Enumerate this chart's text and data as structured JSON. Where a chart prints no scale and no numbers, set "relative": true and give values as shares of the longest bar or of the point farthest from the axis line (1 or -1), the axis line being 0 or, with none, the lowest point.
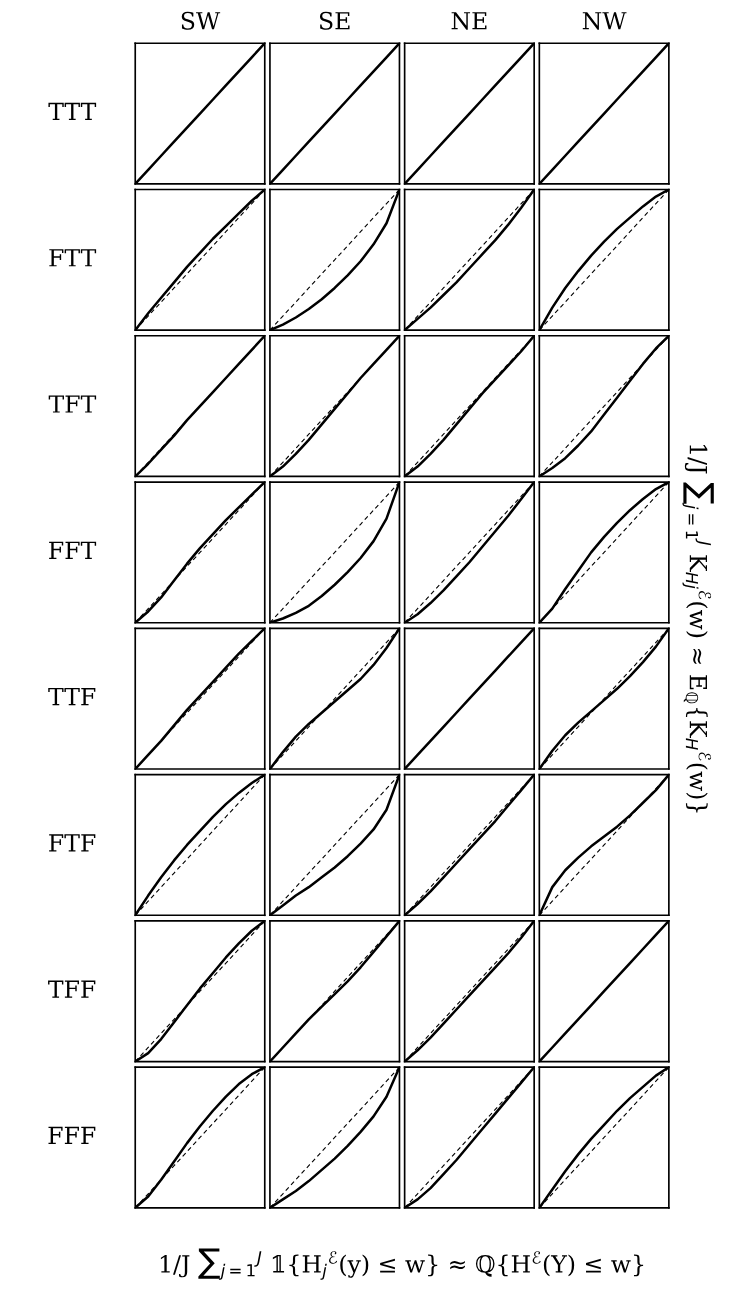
{
  "chart_data": [
    {
      "type": "line",
      "title": "SW",
      "ylabel": "TTT",
      "annotations": [
        "1/J ∑$_{j=1}$$^{J}$ 𝟙{H$_{j}$$^{ℰ}$(y) ≤ w} ≈ ℚ{H$^{ℰ}$(Y) ≤ w}",
        "1/J ∑$_{j=1}$$^{J}$ K$_{Hj}$$^{ℰ}$(w) ≈ E$_{ℚ}${K$_{H}$$^{ℰ}$(w)}"
      ],
      "relative": true,
      "categories": [
        null,
        null,
        null,
        null,
        null,
        null,
        null,
        null,
        null,
        null,
        null
      ],
      "series": [
        {
          "color": "#000000",
          "line_style": "solid",
          "values": [
            0,
            0.1,
            0.2,
            0.3,
            0.4,
            0.5,
            0.6,
            0.7,
            0.8,
            0.9,
            1
          ]
        }
      ]
    },
    {
      "type": "line",
      "title": "SE",
      "relative": true,
      "categories": [
        null,
        null,
        null,
        null,
        null,
        null,
        null,
        null,
        null,
        null,
        null
      ],
      "series": [
        {
          "color": "#000000",
          "line_style": "solid",
          "values": [
            0,
            0.1,
            0.2,
            0.3,
            0.4,
            0.5,
            0.6,
            0.7,
            0.8,
            0.9,
            1
          ]
        }
      ]
    },
    {
      "type": "line",
      "title": "NE",
      "relative": true,
      "categories": [
        null,
        null,
        null,
        null,
        null,
        null,
        null,
        null,
        null,
        null,
        null
      ],
      "series": [
        {
          "color": "#000000",
          "line_style": "solid",
          "values": [
            0,
            0.1,
            0.2,
            0.3,
            0.4,
            0.5,
            0.6,
            0.7,
            0.8,
            0.9,
            1
          ]
        }
      ]
    },
    {
      "type": "line",
      "title": "NW",
      "relative": true,
      "categories": [
        null,
        null,
        null,
        null,
        null,
        null,
        null,
        null,
        null,
        null,
        null
      ],
      "series": [
        {
          "color": "#000000",
          "line_style": "solid",
          "values": [
            0,
            0.1,
            0.2,
            0.3,
            0.4,
            0.5,
            0.6,
            0.7,
            0.8,
            0.9,
            1
          ]
        }
      ]
    },
    {
      "type": "line",
      "ylabel": "FTT",
      "relative": true,
      "categories": [
        null,
        null,
        null,
        null,
        null,
        null,
        null,
        null,
        null,
        null,
        null
      ],
      "series": [
        {
          "color": "#000000",
          "line_style": "solid",
          "values": [
            0,
            0.12,
            0.23,
            0.34,
            0.45,
            0.55,
            0.65,
            0.74,
            0.83,
            0.92,
            1
          ]
        },
        {
          "color": "#000000",
          "line_style": "dashed",
          "values": [
            0,
            0.1,
            0.2,
            0.3,
            0.4,
            0.5,
            0.6,
            0.7,
            0.8,
            0.9,
            1
          ]
        }
      ]
    },
    {
      "type": "line",
      "relative": true,
      "categories": [
        null,
        null,
        null,
        null,
        null,
        null,
        null,
        null,
        null,
        null,
        null
      ],
      "series": [
        {
          "color": "#000000",
          "line_style": "solid",
          "values": [
            0,
            0.04,
            0.09,
            0.15,
            0.22,
            0.3,
            0.39,
            0.49,
            0.61,
            0.76,
            1
          ]
        },
        {
          "color": "#000000",
          "line_style": "dashed",
          "values": [
            0,
            0.1,
            0.2,
            0.3,
            0.4,
            0.5,
            0.6,
            0.7,
            0.8,
            0.9,
            1
          ]
        }
      ]
    },
    {
      "type": "line",
      "relative": true,
      "categories": [
        null,
        null,
        null,
        null,
        null,
        null,
        null,
        null,
        null,
        null,
        null
      ],
      "series": [
        {
          "color": "#000000",
          "line_style": "solid",
          "values": [
            0,
            0.08,
            0.16,
            0.25,
            0.34,
            0.44,
            0.54,
            0.64,
            0.75,
            0.87,
            1
          ]
        },
        {
          "color": "#000000",
          "line_style": "dashed",
          "values": [
            0,
            0.1,
            0.2,
            0.3,
            0.4,
            0.5,
            0.6,
            0.7,
            0.8,
            0.9,
            1
          ]
        }
      ]
    },
    {
      "type": "line",
      "relative": true,
      "categories": [
        null,
        null,
        null,
        null,
        null,
        null,
        null,
        null,
        null,
        null,
        null
      ],
      "series": [
        {
          "color": "#000000",
          "line_style": "solid",
          "values": [
            0,
            0.16,
            0.3,
            0.42,
            0.53,
            0.63,
            0.72,
            0.8,
            0.88,
            0.95,
            1
          ]
        },
        {
          "color": "#000000",
          "line_style": "dashed",
          "values": [
            0,
            0.1,
            0.2,
            0.3,
            0.4,
            0.5,
            0.6,
            0.7,
            0.8,
            0.9,
            1
          ]
        }
      ]
    },
    {
      "type": "line",
      "ylabel": "TFT",
      "relative": true,
      "categories": [
        null,
        null,
        null,
        null,
        null,
        null,
        null,
        null,
        null,
        null,
        null
      ],
      "series": [
        {
          "color": "#000000",
          "line_style": "solid",
          "values": [
            0,
            0.09,
            0.19,
            0.29,
            0.4,
            0.5,
            0.6,
            0.7,
            0.8,
            0.9,
            1
          ]
        },
        {
          "color": "#000000",
          "line_style": "dashed",
          "values": [
            0,
            0.1,
            0.2,
            0.3,
            0.4,
            0.5,
            0.6,
            0.7,
            0.8,
            0.9,
            1
          ]
        }
      ]
    },
    {
      "type": "line",
      "relative": true,
      "categories": [
        null,
        null,
        null,
        null,
        null,
        null,
        null,
        null,
        null,
        null,
        null
      ],
      "series": [
        {
          "color": "#000000",
          "line_style": "solid",
          "values": [
            0,
            0.07,
            0.16,
            0.26,
            0.37,
            0.48,
            0.59,
            0.7,
            0.8,
            0.9,
            1
          ]
        },
        {
          "color": "#000000",
          "line_style": "dashed",
          "values": [
            0,
            0.1,
            0.2,
            0.3,
            0.4,
            0.5,
            0.6,
            0.7,
            0.8,
            0.9,
            1
          ]
        }
      ]
    },
    {
      "type": "line",
      "relative": true,
      "categories": [
        null,
        null,
        null,
        null,
        null,
        null,
        null,
        null,
        null,
        null,
        null
      ],
      "series": [
        {
          "color": "#000000",
          "line_style": "solid",
          "values": [
            0,
            0.07,
            0.16,
            0.26,
            0.37,
            0.48,
            0.59,
            0.69,
            0.79,
            0.89,
            1
          ]
        },
        {
          "color": "#000000",
          "line_style": "dashed",
          "values": [
            0,
            0.1,
            0.2,
            0.3,
            0.4,
            0.5,
            0.6,
            0.7,
            0.8,
            0.9,
            1
          ]
        }
      ]
    },
    {
      "type": "line",
      "relative": true,
      "categories": [
        null,
        null,
        null,
        null,
        null,
        null,
        null,
        null,
        null,
        null,
        null
      ],
      "series": [
        {
          "color": "#000000",
          "line_style": "solid",
          "values": [
            0,
            0.06,
            0.13,
            0.22,
            0.32,
            0.44,
            0.56,
            0.68,
            0.8,
            0.91,
            1
          ]
        },
        {
          "color": "#000000",
          "line_style": "dashed",
          "values": [
            0,
            0.1,
            0.2,
            0.3,
            0.4,
            0.5,
            0.6,
            0.7,
            0.8,
            0.9,
            1
          ]
        }
      ]
    },
    {
      "type": "line",
      "ylabel": "FFT",
      "relative": true,
      "categories": [
        null,
        null,
        null,
        null,
        null,
        null,
        null,
        null,
        null,
        null,
        null
      ],
      "series": [
        {
          "color": "#000000",
          "line_style": "solid",
          "values": [
            0,
            0.08,
            0.18,
            0.3,
            0.42,
            0.53,
            0.63,
            0.73,
            0.82,
            0.91,
            1
          ]
        },
        {
          "color": "#000000",
          "line_style": "dashed",
          "values": [
            0,
            0.1,
            0.2,
            0.3,
            0.4,
            0.5,
            0.6,
            0.7,
            0.8,
            0.9,
            1
          ]
        }
      ]
    },
    {
      "type": "line",
      "relative": true,
      "categories": [
        null,
        null,
        null,
        null,
        null,
        null,
        null,
        null,
        null,
        null,
        null
      ],
      "series": [
        {
          "color": "#000000",
          "line_style": "solid",
          "values": [
            0,
            0.03,
            0.07,
            0.12,
            0.19,
            0.27,
            0.36,
            0.46,
            0.58,
            0.74,
            1
          ]
        },
        {
          "color": "#000000",
          "line_style": "dashed",
          "values": [
            0,
            0.1,
            0.2,
            0.3,
            0.4,
            0.5,
            0.6,
            0.7,
            0.8,
            0.9,
            1
          ]
        }
      ]
    },
    {
      "type": "line",
      "relative": true,
      "categories": [
        null,
        null,
        null,
        null,
        null,
        null,
        null,
        null,
        null,
        null,
        null
      ],
      "series": [
        {
          "color": "#000000",
          "line_style": "solid",
          "values": [
            0,
            0.06,
            0.14,
            0.23,
            0.33,
            0.43,
            0.54,
            0.65,
            0.76,
            0.88,
            1
          ]
        },
        {
          "color": "#000000",
          "line_style": "dashed",
          "values": [
            0,
            0.1,
            0.2,
            0.3,
            0.4,
            0.5,
            0.6,
            0.7,
            0.8,
            0.9,
            1
          ]
        }
      ]
    },
    {
      "type": "line",
      "relative": true,
      "categories": [
        null,
        null,
        null,
        null,
        null,
        null,
        null,
        null,
        null,
        null,
        null
      ],
      "series": [
        {
          "color": "#000000",
          "line_style": "solid",
          "values": [
            0,
            0.1,
            0.24,
            0.37,
            0.5,
            0.61,
            0.71,
            0.8,
            0.88,
            0.95,
            1
          ]
        },
        {
          "color": "#000000",
          "line_style": "dashed",
          "values": [
            0,
            0.1,
            0.2,
            0.3,
            0.4,
            0.5,
            0.6,
            0.7,
            0.8,
            0.9,
            1
          ]
        }
      ]
    },
    {
      "type": "line",
      "ylabel": "TTF",
      "relative": true,
      "categories": [
        null,
        null,
        null,
        null,
        null,
        null,
        null,
        null,
        null,
        null,
        null
      ],
      "series": [
        {
          "color": "#000000",
          "line_style": "solid",
          "values": [
            0,
            0.1,
            0.2,
            0.31,
            0.42,
            0.52,
            0.62,
            0.72,
            0.82,
            0.91,
            1
          ]
        },
        {
          "color": "#000000",
          "line_style": "dashed",
          "values": [
            0,
            0.1,
            0.2,
            0.3,
            0.4,
            0.5,
            0.6,
            0.7,
            0.8,
            0.9,
            1
          ]
        }
      ]
    },
    {
      "type": "line",
      "relative": true,
      "categories": [
        null,
        null,
        null,
        null,
        null,
        null,
        null,
        null,
        null,
        null,
        null
      ],
      "series": [
        {
          "color": "#000000",
          "line_style": "solid",
          "values": [
            0,
            0.12,
            0.23,
            0.32,
            0.4,
            0.48,
            0.56,
            0.64,
            0.74,
            0.86,
            1
          ]
        },
        {
          "color": "#000000",
          "line_style": "dashed",
          "values": [
            0,
            0.1,
            0.2,
            0.3,
            0.4,
            0.5,
            0.6,
            0.7,
            0.8,
            0.9,
            1
          ]
        }
      ]
    },
    {
      "type": "line",
      "relative": true,
      "categories": [
        null,
        null,
        null,
        null,
        null,
        null,
        null,
        null,
        null,
        null,
        null
      ],
      "series": [
        {
          "color": "#000000",
          "line_style": "solid",
          "values": [
            0,
            0.1,
            0.2,
            0.3,
            0.4,
            0.5,
            0.6,
            0.7,
            0.8,
            0.9,
            1
          ]
        }
      ]
    },
    {
      "type": "line",
      "relative": true,
      "categories": [
        null,
        null,
        null,
        null,
        null,
        null,
        null,
        null,
        null,
        null,
        null
      ],
      "series": [
        {
          "color": "#000000",
          "line_style": "solid",
          "values": [
            0,
            0.13,
            0.24,
            0.33,
            0.41,
            0.49,
            0.57,
            0.66,
            0.76,
            0.87,
            1
          ]
        },
        {
          "color": "#000000",
          "line_style": "dashed",
          "values": [
            0,
            0.1,
            0.2,
            0.3,
            0.4,
            0.5,
            0.6,
            0.7,
            0.8,
            0.9,
            1
          ]
        }
      ]
    },
    {
      "type": "line",
      "ylabel": "FTF",
      "relative": true,
      "categories": [
        null,
        null,
        null,
        null,
        null,
        null,
        null,
        null,
        null,
        null,
        null
      ],
      "series": [
        {
          "color": "#000000",
          "line_style": "solid",
          "values": [
            0,
            0.14,
            0.27,
            0.39,
            0.5,
            0.6,
            0.7,
            0.79,
            0.87,
            0.94,
            1
          ]
        },
        {
          "color": "#000000",
          "line_style": "dashed",
          "values": [
            0,
            0.1,
            0.2,
            0.3,
            0.4,
            0.5,
            0.6,
            0.7,
            0.8,
            0.9,
            1
          ]
        }
      ]
    },
    {
      "type": "line",
      "relative": true,
      "categories": [
        null,
        null,
        null,
        null,
        null,
        null,
        null,
        null,
        null,
        null,
        null
      ],
      "series": [
        {
          "color": "#000000",
          "line_style": "solid",
          "values": [
            0,
            0.07,
            0.14,
            0.2,
            0.27,
            0.34,
            0.42,
            0.51,
            0.61,
            0.75,
            1
          ]
        },
        {
          "color": "#000000",
          "line_style": "dashed",
          "values": [
            0,
            0.1,
            0.2,
            0.3,
            0.4,
            0.5,
            0.6,
            0.7,
            0.8,
            0.9,
            1
          ]
        }
      ]
    },
    {
      "type": "line",
      "relative": true,
      "categories": [
        null,
        null,
        null,
        null,
        null,
        null,
        null,
        null,
        null,
        null,
        null
      ],
      "series": [
        {
          "color": "#000000",
          "line_style": "solid",
          "values": [
            0,
            0.08,
            0.17,
            0.27,
            0.37,
            0.47,
            0.57,
            0.67,
            0.78,
            0.89,
            1
          ]
        },
        {
          "color": "#000000",
          "line_style": "dashed",
          "values": [
            0,
            0.1,
            0.2,
            0.3,
            0.4,
            0.5,
            0.6,
            0.7,
            0.8,
            0.9,
            1
          ]
        }
      ]
    },
    {
      "type": "line",
      "relative": true,
      "categories": [
        null,
        null,
        null,
        null,
        null,
        null,
        null,
        null,
        null,
        null,
        null
      ],
      "series": [
        {
          "color": "#000000",
          "line_style": "solid",
          "values": [
            0,
            0.2,
            0.32,
            0.41,
            0.49,
            0.56,
            0.63,
            0.71,
            0.8,
            0.89,
            1
          ]
        },
        {
          "color": "#000000",
          "line_style": "dashed",
          "values": [
            0,
            0.1,
            0.2,
            0.3,
            0.4,
            0.5,
            0.6,
            0.7,
            0.8,
            0.9,
            1
          ]
        }
      ]
    },
    {
      "type": "line",
      "ylabel": "TFF",
      "relative": true,
      "categories": [
        null,
        null,
        null,
        null,
        null,
        null,
        null,
        null,
        null,
        null,
        null
      ],
      "series": [
        {
          "color": "#000000",
          "line_style": "solid",
          "values": [
            0,
            0.06,
            0.16,
            0.28,
            0.4,
            0.52,
            0.63,
            0.74,
            0.84,
            0.93,
            1
          ]
        },
        {
          "color": "#000000",
          "line_style": "dashed",
          "values": [
            0,
            0.1,
            0.2,
            0.3,
            0.4,
            0.5,
            0.6,
            0.7,
            0.8,
            0.9,
            1
          ]
        }
      ]
    },
    {
      "type": "line",
      "relative": true,
      "categories": [
        null,
        null,
        null,
        null,
        null,
        null,
        null,
        null,
        null,
        null,
        null
      ],
      "series": [
        {
          "color": "#000000",
          "line_style": "solid",
          "values": [
            0,
            0.1,
            0.2,
            0.3,
            0.39,
            0.48,
            0.57,
            0.67,
            0.78,
            0.89,
            1
          ]
        },
        {
          "color": "#000000",
          "line_style": "dashed",
          "values": [
            0,
            0.1,
            0.2,
            0.3,
            0.4,
            0.5,
            0.6,
            0.7,
            0.8,
            0.9,
            1
          ]
        }
      ]
    },
    {
      "type": "line",
      "relative": true,
      "categories": [
        null,
        null,
        null,
        null,
        null,
        null,
        null,
        null,
        null,
        null,
        null
      ],
      "series": [
        {
          "color": "#000000",
          "line_style": "solid",
          "values": [
            0,
            0.08,
            0.17,
            0.27,
            0.37,
            0.47,
            0.57,
            0.67,
            0.77,
            0.88,
            1
          ]
        },
        {
          "color": "#000000",
          "line_style": "dashed",
          "values": [
            0,
            0.1,
            0.2,
            0.3,
            0.4,
            0.5,
            0.6,
            0.7,
            0.8,
            0.9,
            1
          ]
        }
      ]
    },
    {
      "type": "line",
      "relative": true,
      "categories": [
        null,
        null,
        null,
        null,
        null,
        null,
        null,
        null,
        null,
        null,
        null
      ],
      "series": [
        {
          "color": "#000000",
          "line_style": "solid",
          "values": [
            0,
            0.1,
            0.2,
            0.3,
            0.4,
            0.5,
            0.6,
            0.7,
            0.8,
            0.9,
            1
          ]
        }
      ]
    },
    {
      "type": "line",
      "ylabel": "FFF",
      "relative": true,
      "categories": [
        null,
        null,
        null,
        null,
        null,
        null,
        null,
        null,
        null,
        null,
        null
      ],
      "series": [
        {
          "color": "#000000",
          "line_style": "solid",
          "values": [
            0,
            0.08,
            0.2,
            0.33,
            0.46,
            0.58,
            0.69,
            0.79,
            0.88,
            0.95,
            1
          ]
        },
        {
          "color": "#000000",
          "line_style": "dashed",
          "values": [
            0,
            0.1,
            0.2,
            0.3,
            0.4,
            0.5,
            0.6,
            0.7,
            0.8,
            0.9,
            1
          ]
        }
      ]
    },
    {
      "type": "line",
      "relative": true,
      "categories": [
        null,
        null,
        null,
        null,
        null,
        null,
        null,
        null,
        null,
        null,
        null
      ],
      "series": [
        {
          "color": "#000000",
          "line_style": "solid",
          "values": [
            0,
            0.06,
            0.12,
            0.19,
            0.27,
            0.35,
            0.44,
            0.54,
            0.65,
            0.79,
            1
          ]
        },
        {
          "color": "#000000",
          "line_style": "dashed",
          "values": [
            0,
            0.1,
            0.2,
            0.3,
            0.4,
            0.5,
            0.6,
            0.7,
            0.8,
            0.9,
            1
          ]
        }
      ]
    },
    {
      "type": "line",
      "relative": true,
      "categories": [
        null,
        null,
        null,
        null,
        null,
        null,
        null,
        null,
        null,
        null,
        null
      ],
      "series": [
        {
          "color": "#000000",
          "line_style": "solid",
          "values": [
            0,
            0.06,
            0.14,
            0.24,
            0.34,
            0.45,
            0.56,
            0.67,
            0.78,
            0.89,
            1
          ]
        },
        {
          "color": "#000000",
          "line_style": "dashed",
          "values": [
            0,
            0.1,
            0.2,
            0.3,
            0.4,
            0.5,
            0.6,
            0.7,
            0.8,
            0.9,
            1
          ]
        }
      ]
    },
    {
      "type": "line",
      "relative": true,
      "categories": [
        null,
        null,
        null,
        null,
        null,
        null,
        null,
        null,
        null,
        null,
        null
      ],
      "series": [
        {
          "color": "#000000",
          "line_style": "solid",
          "values": [
            0,
            0.13,
            0.26,
            0.38,
            0.49,
            0.59,
            0.69,
            0.78,
            0.86,
            0.94,
            1
          ]
        },
        {
          "color": "#000000",
          "line_style": "dashed",
          "values": [
            0,
            0.1,
            0.2,
            0.3,
            0.4,
            0.5,
            0.6,
            0.7,
            0.8,
            0.9,
            1
          ]
        }
      ]
    }
  ]
}
